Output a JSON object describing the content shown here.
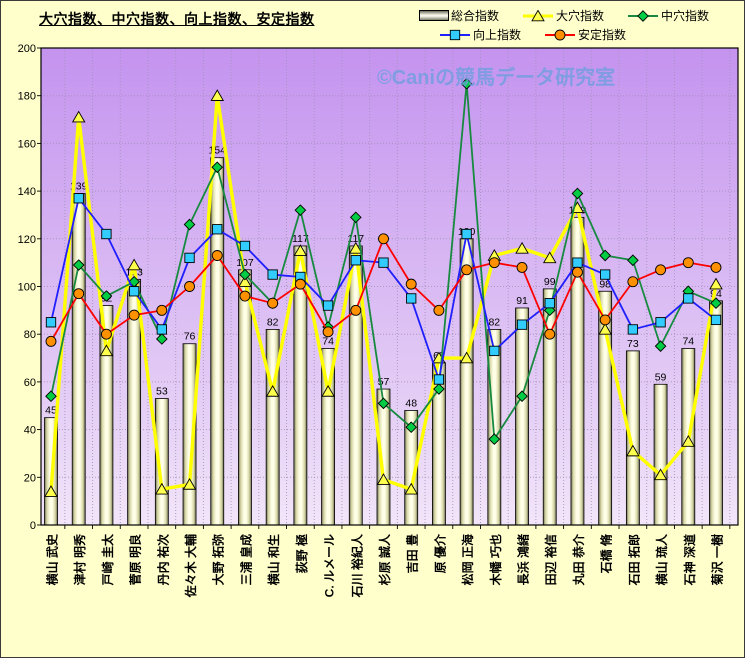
{
  "chart_data": {
    "type": "bar",
    "combo": "bar+line",
    "title": "大穴指数、中穴指数、向上指数、安定指数",
    "watermark": "©Caniの競馬データ研究室",
    "y_axis": {
      "min": 0,
      "max": 200,
      "step": 20,
      "tick_labels": [
        "0",
        "20",
        "40",
        "60",
        "80",
        "100",
        "120",
        "140",
        "160",
        "180",
        "200"
      ]
    },
    "categories": [
      "横山 武史",
      "津村 明秀",
      "戸崎 圭太",
      "菅原 明良",
      "丹内 祐次",
      "佐々木 大輔",
      "大野 拓弥",
      "三浦 皇成",
      "横山 和生",
      "荻野 極",
      "C. ルメール",
      "石川 裕紀人",
      "杉原 誠人",
      "吉田 豊",
      "原 優介",
      "松岡 正海",
      "木幡 巧也",
      "長浜 鴻緒",
      "田辺 裕信",
      "丸田 恭介",
      "石橋 脩",
      "石田 拓郎",
      "横山 琉人",
      "石神 深道",
      "菊沢 一樹"
    ],
    "series": [
      {
        "name": "総合指数",
        "type": "bar",
        "show_labels": true,
        "values": [
          45,
          139,
          92,
          103,
          53,
          76,
          154,
          107,
          82,
          117,
          74,
          117,
          57,
          48,
          68,
          120,
          82,
          91,
          99,
          129,
          98,
          73,
          59,
          74,
          94
        ]
      },
      {
        "name": "大穴指数",
        "type": "line",
        "marker": "triangle",
        "line_color": "#FFFF00",
        "marker_color": "#FFFF4D",
        "line_width": 3.4,
        "values": [
          14,
          171,
          73,
          109,
          15,
          17,
          180,
          102,
          56,
          115,
          56,
          116,
          19,
          15,
          70,
          70,
          113,
          116,
          112,
          133,
          82,
          31,
          21,
          35,
          101
        ]
      },
      {
        "name": "中穴指数",
        "type": "line",
        "marker": "diamond",
        "line_color": "#178A3F",
        "marker_color": "#00CC44",
        "line_width": 1.8,
        "values": [
          54,
          109,
          96,
          102,
          78,
          126,
          150,
          105,
          93,
          132,
          83,
          129,
          51,
          41,
          57,
          185,
          36,
          54,
          90,
          139,
          113,
          111,
          75,
          98,
          93
        ]
      },
      {
        "name": "向上指数",
        "type": "line",
        "marker": "square",
        "line_color": "#1F1FFF",
        "marker_color": "#33CCFF",
        "line_width": 1.8,
        "values": [
          85,
          137,
          122,
          98,
          82,
          112,
          124,
          117,
          105,
          104,
          92,
          111,
          110,
          95,
          61,
          122,
          73,
          84,
          93,
          110,
          105,
          82,
          85,
          95,
          86
        ]
      },
      {
        "name": "安定指数",
        "type": "line",
        "marker": "circle",
        "line_color": "#FF0000",
        "marker_color": "#FF9100",
        "line_width": 1.8,
        "values": [
          77,
          97,
          80,
          88,
          90,
          100,
          113,
          96,
          93,
          101,
          81,
          90,
          120,
          101,
          90,
          107,
          110,
          108,
          80,
          106,
          86,
          102,
          107,
          110,
          108
        ]
      }
    ],
    "colors": {
      "background": "#FFFFCC",
      "plot_top": "#C493EF",
      "plot_bottom": "#F2E5F9",
      "grid": "#A391B8",
      "bar_edge": "#6E6E54",
      "bar_mid": "#D8D8A8",
      "bar_center": "#FFFFE8",
      "watermark": "#6F9FE0"
    },
    "layout": {
      "legend_position": "top-right",
      "grid": true,
      "x_labels_rotated": true
    }
  }
}
